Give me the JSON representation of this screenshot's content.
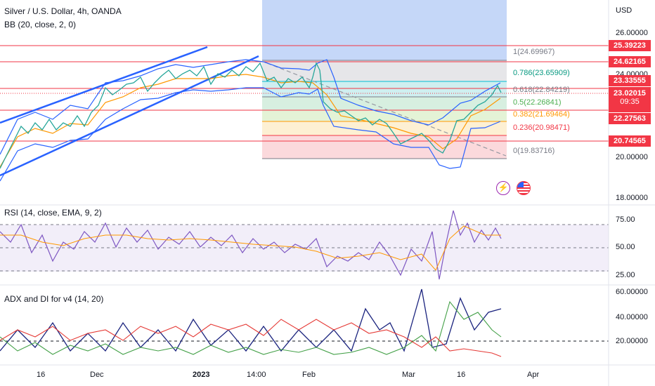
{
  "header": {
    "title": "Silver / U.S. Dollar, 4h, OANDA",
    "bb_label": "BB (20, close, 2, 0)",
    "currency": "USD"
  },
  "price_axis": [
    "26.00000",
    "24.00000",
    "20.00000",
    "18.00000"
  ],
  "price_tags": [
    "25.39223",
    "24.62165",
    "23.33555",
    "23.02015",
    "09:35",
    "22.27563",
    "20.74565"
  ],
  "fib_levels": [
    {
      "label": "1(24.69967)",
      "color": "#787b86"
    },
    {
      "label": "0.786(23.65909)",
      "color": "#089981"
    },
    {
      "label": "0.618(22.84219)",
      "color": "#787b86"
    },
    {
      "label": "0.5(22.26841)",
      "color": "#4caf50"
    },
    {
      "label": "0.382(21.69464)",
      "color": "#ff9800"
    },
    {
      "label": "0.236(20.98471)",
      "color": "#f23645"
    },
    {
      "label": "0(19.83716)",
      "color": "#787b86"
    }
  ],
  "rsi": {
    "label": "RSI (14, close, EMA, 9, 2)",
    "levels": [
      "75.00",
      "50.00",
      "25.00"
    ]
  },
  "adx": {
    "label": "ADX and DI for v4 (14, 20)",
    "levels": [
      "60.00000",
      "40.00000",
      "20.00000"
    ]
  },
  "time_axis": [
    "16",
    "Dec",
    "2023",
    "14:00",
    "Feb",
    "Mar",
    "16",
    "Apr"
  ],
  "icons": {
    "flash": "lightning-icon",
    "flag": "us-flag-icon"
  },
  "colors": {
    "red_line": "#f23645",
    "channel": "#2962ff",
    "bb": "#2962ff",
    "ema": "#ff9800",
    "rsi": "#7e57c2"
  }
}
